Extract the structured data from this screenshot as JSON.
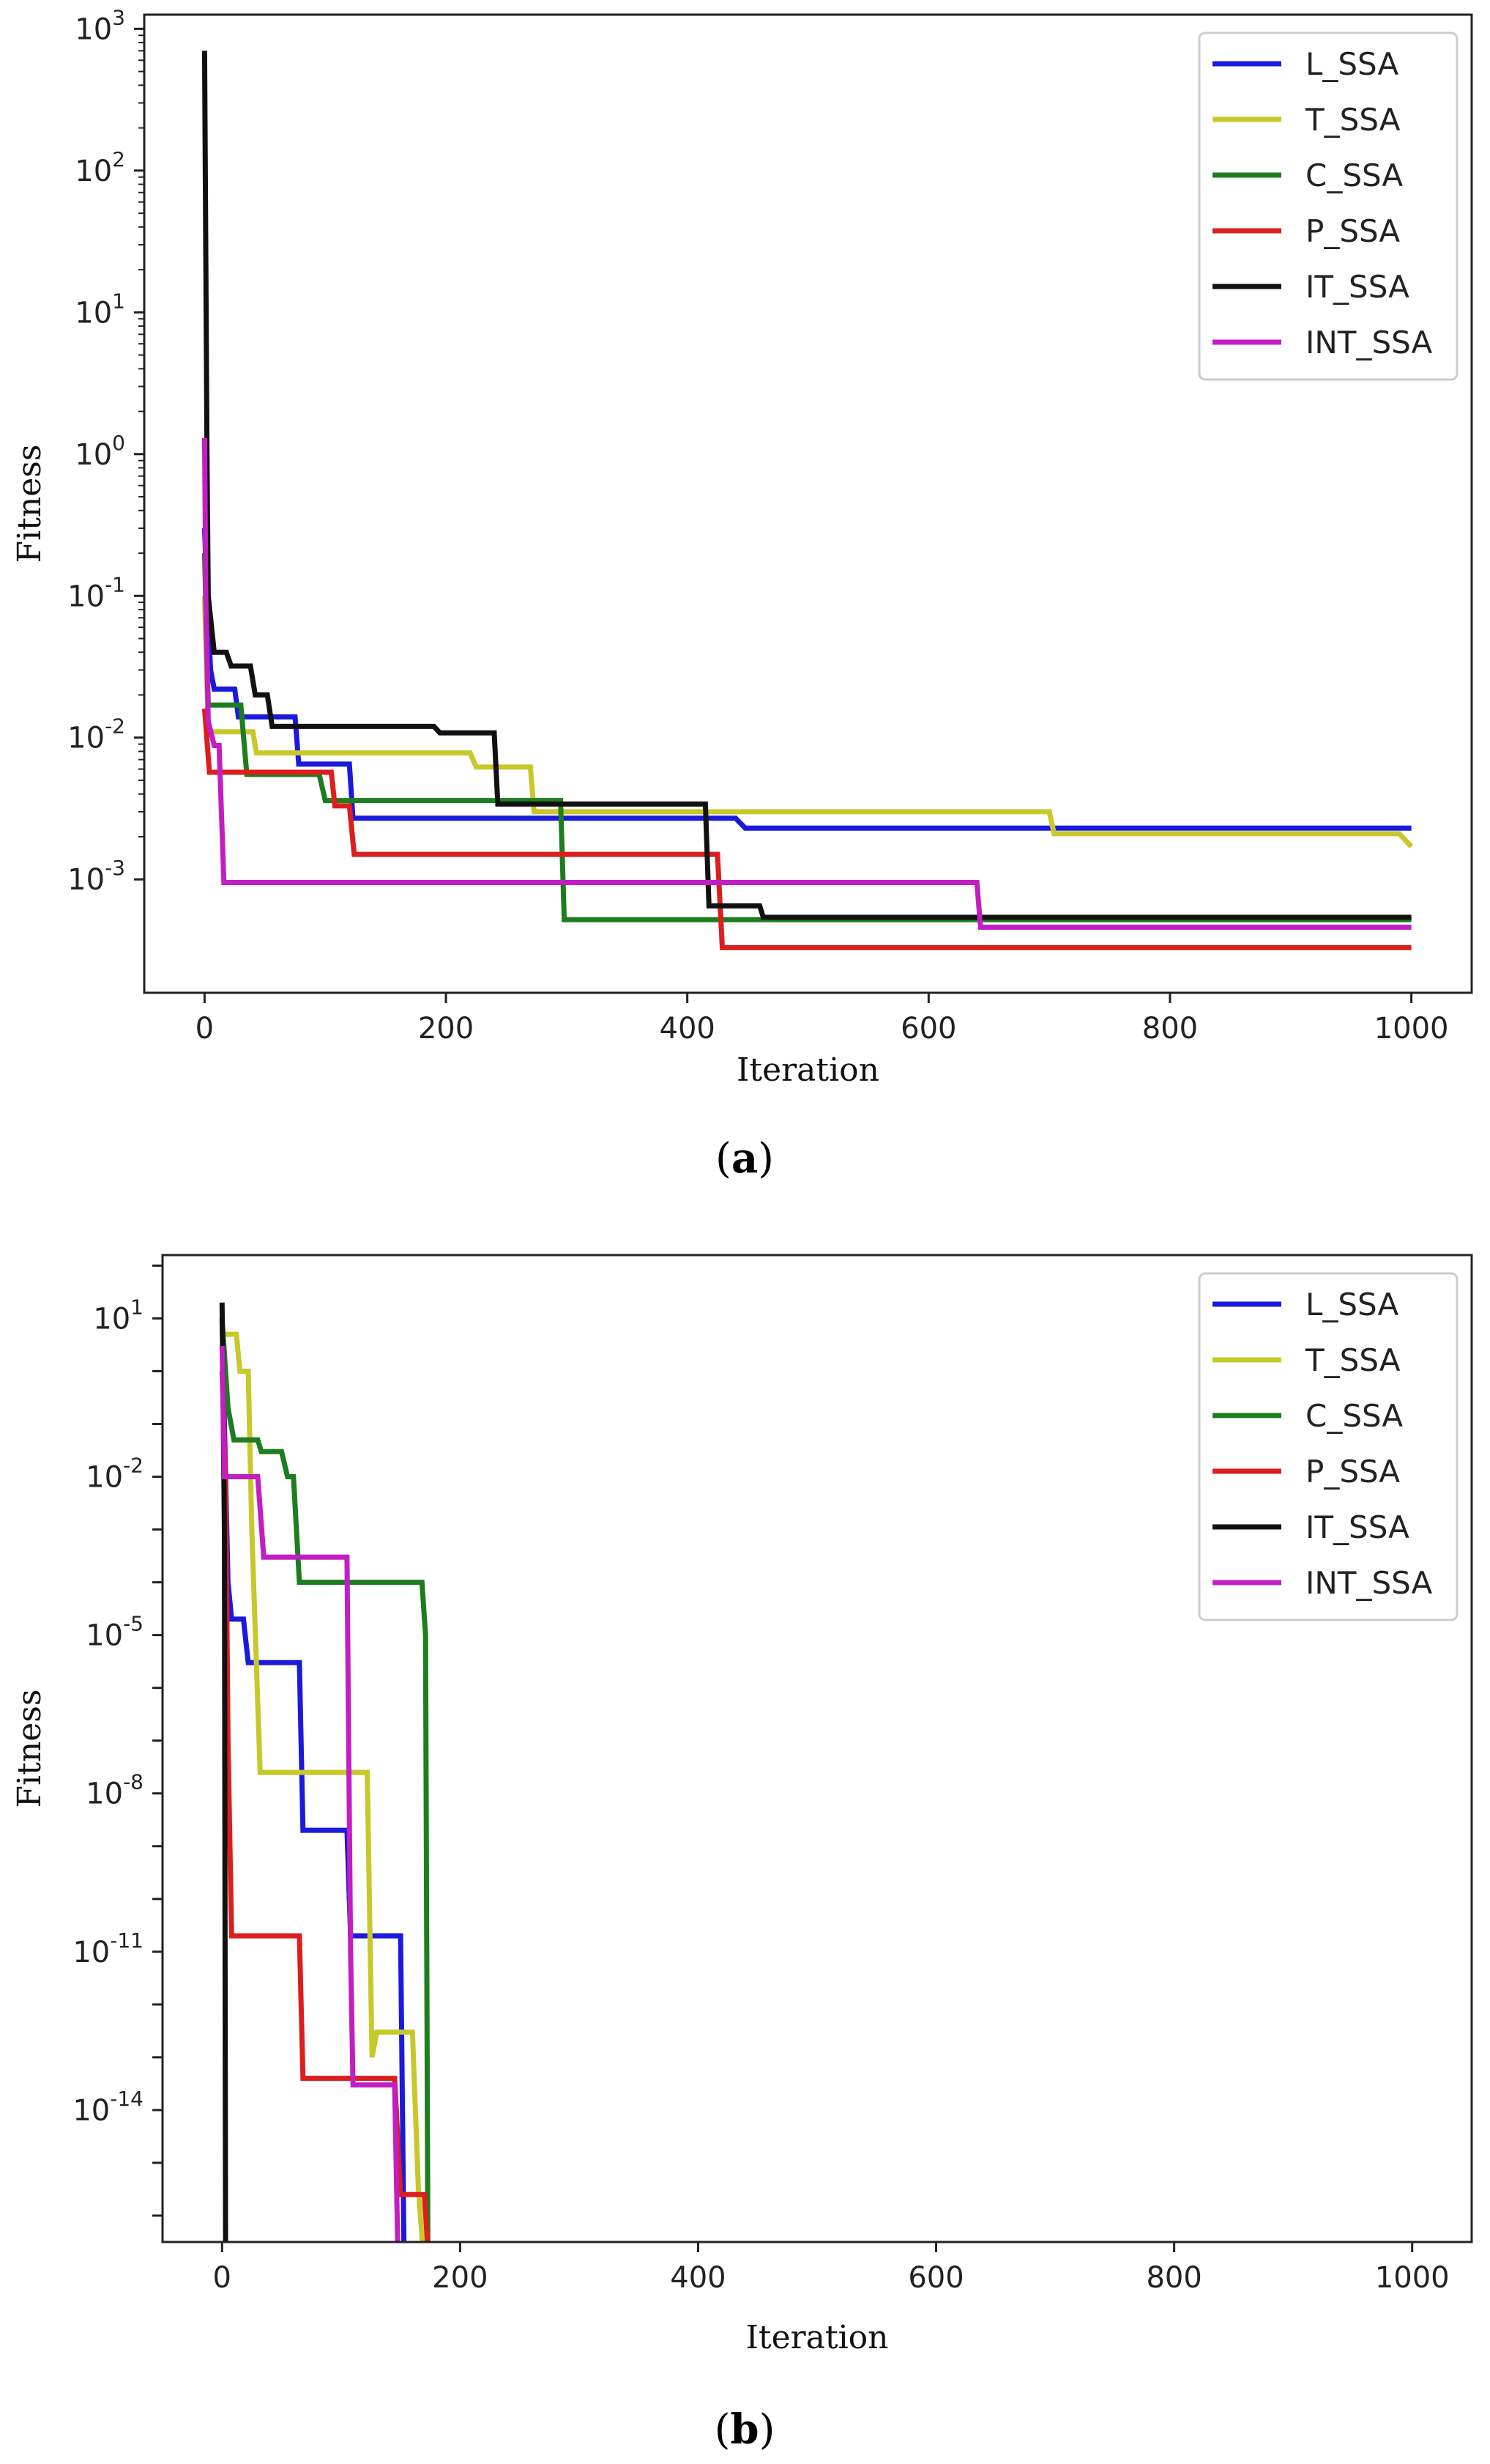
{
  "chart_data": [
    {
      "type": "line",
      "panel": "a",
      "xlabel": "Iteration",
      "ylabel": "Fitness",
      "xlim": [
        -50,
        1050
      ],
      "ylim_exp": [
        -3.8,
        3.1
      ],
      "yscale": "log",
      "xticks": [
        0,
        200,
        400,
        600,
        800,
        1000
      ],
      "xtick_labels": [
        "0",
        "200",
        "400",
        "600",
        "800",
        "1000"
      ],
      "yticks": [
        -3,
        -2,
        -1,
        0,
        1,
        2,
        3
      ],
      "ytick_labels": [
        {
          "base": "10",
          "exp": "-3"
        },
        {
          "base": "10",
          "exp": "-2"
        },
        {
          "base": "10",
          "exp": "-1"
        },
        {
          "base": "10",
          "exp": "0"
        },
        {
          "base": "10",
          "exp": "1"
        },
        {
          "base": "10",
          "exp": "2"
        },
        {
          "base": "10",
          "exp": "3"
        }
      ],
      "legend_position": "top-right",
      "grid": false,
      "series": [
        {
          "name": "L_SSA",
          "color": "#1a1adc",
          "points": [
            [
              0,
              0.3
            ],
            [
              2,
              0.1
            ],
            [
              5,
              0.03
            ],
            [
              8,
              0.022
            ],
            [
              25,
              0.022
            ],
            [
              28,
              0.014
            ],
            [
              75,
              0.014
            ],
            [
              78,
              0.0065
            ],
            [
              120,
              0.0065
            ],
            [
              123,
              0.0027
            ],
            [
              440,
              0.0027
            ],
            [
              448,
              0.0023
            ],
            [
              1000,
              0.0023
            ]
          ]
        },
        {
          "name": "T_SSA",
          "color": "#c8c82a",
          "points": [
            [
              0,
              0.1
            ],
            [
              3,
              0.011
            ],
            [
              40,
              0.011
            ],
            [
              43,
              0.0078
            ],
            [
              220,
              0.0078
            ],
            [
              225,
              0.0062
            ],
            [
              270,
              0.0062
            ],
            [
              273,
              0.003
            ],
            [
              700,
              0.003
            ],
            [
              704,
              0.0021
            ],
            [
              990,
              0.0021
            ],
            [
              1000,
              0.0017
            ]
          ]
        },
        {
          "name": "C_SSA",
          "color": "#1e7d1e",
          "points": [
            [
              0,
              0.2
            ],
            [
              3,
              0.017
            ],
            [
              30,
              0.017
            ],
            [
              35,
              0.0055
            ],
            [
              95,
              0.0055
            ],
            [
              100,
              0.0036
            ],
            [
              295,
              0.0036
            ],
            [
              298,
              0.00052
            ],
            [
              1000,
              0.00052
            ]
          ]
        },
        {
          "name": "P_SSA",
          "color": "#dc1e1e",
          "points": [
            [
              0,
              0.016
            ],
            [
              4,
              0.0057
            ],
            [
              105,
              0.0057
            ],
            [
              108,
              0.0033
            ],
            [
              120,
              0.0033
            ],
            [
              124,
              0.0015
            ],
            [
              425,
              0.0015
            ],
            [
              429,
              0.00033
            ],
            [
              1000,
              0.00033
            ]
          ]
        },
        {
          "name": "IT_SSA",
          "color": "#111111",
          "points": [
            [
              0,
              700
            ],
            [
              2,
              1.0
            ],
            [
              3,
              0.1
            ],
            [
              8,
              0.04
            ],
            [
              18,
              0.04
            ],
            [
              22,
              0.032
            ],
            [
              38,
              0.032
            ],
            [
              42,
              0.02
            ],
            [
              52,
              0.02
            ],
            [
              56,
              0.012
            ],
            [
              190,
              0.012
            ],
            [
              195,
              0.0108
            ],
            [
              240,
              0.0108
            ],
            [
              243,
              0.0034
            ],
            [
              415,
              0.0034
            ],
            [
              418,
              0.00065
            ],
            [
              460,
              0.00065
            ],
            [
              463,
              0.00054
            ],
            [
              1000,
              0.00054
            ]
          ]
        },
        {
          "name": "INT_SSA",
          "color": "#c21ec2",
          "points": [
            [
              0,
              1.3
            ],
            [
              1,
              0.1
            ],
            [
              3,
              0.013
            ],
            [
              8,
              0.0088
            ],
            [
              12,
              0.0088
            ],
            [
              16,
              0.00095
            ],
            [
              640,
              0.00095
            ],
            [
              643,
              0.00046
            ],
            [
              1000,
              0.00046
            ]
          ]
        }
      ]
    },
    {
      "type": "line",
      "panel": "b",
      "xlabel": "Iteration",
      "ylabel": "Fitness",
      "xlim": [
        -50,
        1050
      ],
      "ylim_exp": [
        -16.5,
        2.2
      ],
      "yscale": "log",
      "xticks": [
        0,
        200,
        400,
        600,
        800,
        1000
      ],
      "xtick_labels": [
        "0",
        "200",
        "400",
        "600",
        "800",
        "1000"
      ],
      "yticks": [
        -14,
        -11,
        -8,
        -5,
        -2,
        1
      ],
      "ytick_labels": [
        {
          "base": "10",
          "exp": "-14"
        },
        {
          "base": "10",
          "exp": "-11"
        },
        {
          "base": "10",
          "exp": "-8"
        },
        {
          "base": "10",
          "exp": "-5"
        },
        {
          "base": "10",
          "exp": "-2"
        },
        {
          "base": "10",
          "exp": "1"
        }
      ],
      "legend_position": "top-right",
      "grid": false,
      "series": [
        {
          "name": "L_SSA",
          "color": "#1a1adc",
          "points": [
            [
              0,
              10
            ],
            [
              3,
              0.01
            ],
            [
              5,
              0.0001
            ],
            [
              8,
              2e-05
            ],
            [
              18,
              2e-05
            ],
            [
              22,
              3e-06
            ],
            [
              65,
              3e-06
            ],
            [
              68,
              2e-09
            ],
            [
              105,
              2e-09
            ],
            [
              108,
              2e-11
            ],
            [
              150,
              2e-11
            ],
            [
              153,
              1e-17
            ],
            [
              1000,
              1e-17
            ]
          ]
        },
        {
          "name": "T_SSA",
          "color": "#c8c82a",
          "points": [
            [
              0,
              5
            ],
            [
              12,
              5
            ],
            [
              15,
              1
            ],
            [
              22,
              1
            ],
            [
              25,
              0.001
            ],
            [
              28,
              1e-05
            ],
            [
              32,
              2.5e-08
            ],
            [
              122,
              2.5e-08
            ],
            [
              126,
              1e-13
            ],
            [
              130,
              3e-13
            ],
            [
              160,
              3e-13
            ],
            [
              165,
              3e-16
            ],
            [
              170,
              1e-17
            ],
            [
              1000,
              1e-17
            ]
          ]
        },
        {
          "name": "C_SSA",
          "color": "#1e7d1e",
          "points": [
            [
              0,
              10
            ],
            [
              5,
              0.2
            ],
            [
              10,
              0.05
            ],
            [
              30,
              0.05
            ],
            [
              33,
              0.03
            ],
            [
              50,
              0.03
            ],
            [
              55,
              0.01
            ],
            [
              60,
              0.01
            ],
            [
              65,
              0.0001
            ],
            [
              168,
              0.0001
            ],
            [
              171,
              1e-05
            ],
            [
              173,
              1e-17
            ],
            [
              1000,
              1e-17
            ]
          ]
        },
        {
          "name": "P_SSA",
          "color": "#dc1e1e",
          "points": [
            [
              0,
              1
            ],
            [
              3,
              0.01
            ],
            [
              5,
              1e-07
            ],
            [
              8,
              2e-11
            ],
            [
              65,
              2e-11
            ],
            [
              68,
              4e-14
            ],
            [
              145,
              4e-14
            ],
            [
              150,
              2.5e-16
            ],
            [
              170,
              2.5e-16
            ],
            [
              174,
              1e-17
            ],
            [
              1000,
              1e-17
            ]
          ]
        },
        {
          "name": "IT_SSA",
          "color": "#111111",
          "points": [
            [
              0,
              20
            ],
            [
              2,
              0.001
            ],
            [
              3,
              1e-17
            ],
            [
              145,
              1e-17
            ],
            [
              1000,
              1e-17
            ]
          ]
        },
        {
          "name": "INT_SSA",
          "color": "#c21ec2",
          "points": [
            [
              0,
              3
            ],
            [
              2,
              0.01
            ],
            [
              5,
              0.01
            ],
            [
              30,
              0.01
            ],
            [
              35,
              0.0003
            ],
            [
              105,
              0.0003
            ],
            [
              108,
              1e-11
            ],
            [
              110,
              3e-14
            ],
            [
              145,
              3e-14
            ],
            [
              148,
              1e-17
            ],
            [
              1000,
              1e-17
            ]
          ]
        }
      ]
    }
  ]
}
